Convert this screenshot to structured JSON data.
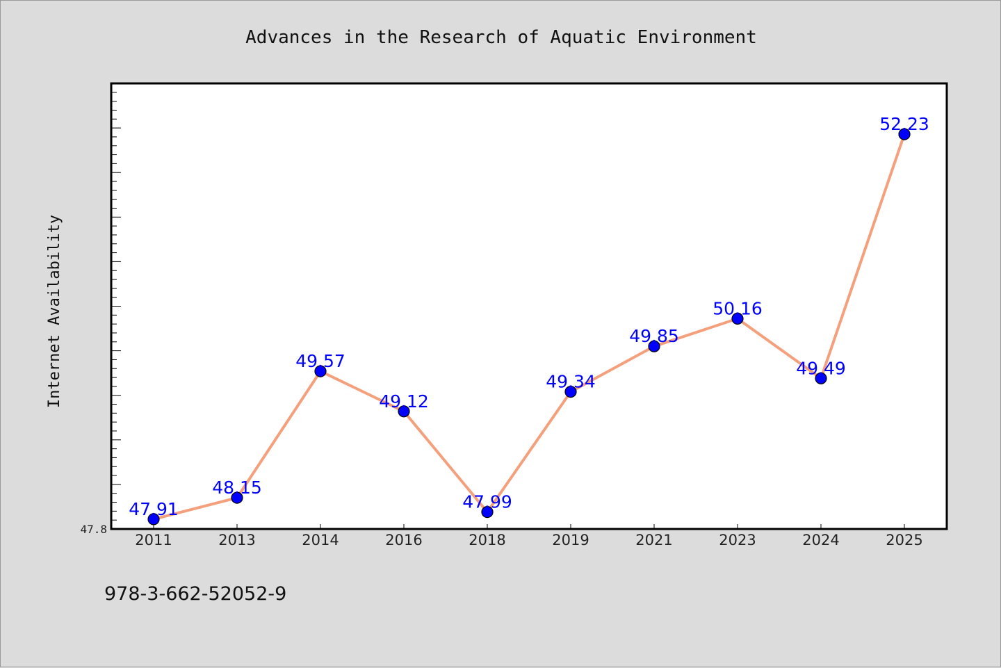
{
  "chart_data": {
    "type": "line",
    "title": "Advances in the Research of Aquatic Environment",
    "xlabel": "",
    "ylabel": "Internet Availability",
    "categories": [
      "2011",
      "2013",
      "2014",
      "2016",
      "2018",
      "2019",
      "2021",
      "2023",
      "2024",
      "2025"
    ],
    "series": [
      {
        "values": [
          47.91,
          48.15,
          49.57,
          49.12,
          47.99,
          49.34,
          49.85,
          50.16,
          49.49,
          52.23
        ],
        "line_color": "#f4a07c",
        "marker_color": "#0000ff"
      }
    ],
    "data_labels": [
      "47.91",
      "48.15",
      "49.57",
      "49.12",
      "47.99",
      "49.34",
      "49.85",
      "50.16",
      "49.49",
      "52.23"
    ],
    "y_tick_labels": [
      "47.8"
    ],
    "ylim": [
      47.8,
      52.8
    ],
    "grid": false,
    "legend": "none"
  },
  "footnote": "978-3-662-52052-9"
}
